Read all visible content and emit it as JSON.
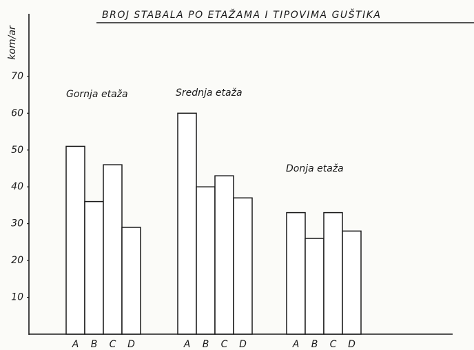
{
  "chart_data": {
    "type": "bar",
    "title": "BROJ STABALA PO ETAŽAMA I TIPOVIMA GUŠTIKA",
    "y_label": "kom/ar",
    "groups": [
      {
        "name": "Gornja etaža",
        "categories": [
          "A",
          "B",
          "C",
          "D"
        ],
        "values": [
          51,
          36,
          46,
          29
        ]
      },
      {
        "name": "Srednja etaža",
        "categories": [
          "A",
          "B",
          "C",
          "D"
        ],
        "values": [
          60,
          40,
          43,
          37
        ]
      },
      {
        "name": "Donja etaža",
        "categories": [
          "A",
          "B",
          "C",
          "D"
        ],
        "values": [
          33,
          26,
          33,
          28
        ]
      }
    ],
    "color": "#ffffff",
    "ylim": [
      0,
      87
    ],
    "yticks": [
      10,
      20,
      30,
      40,
      50,
      60,
      70
    ],
    "grid": false
  }
}
